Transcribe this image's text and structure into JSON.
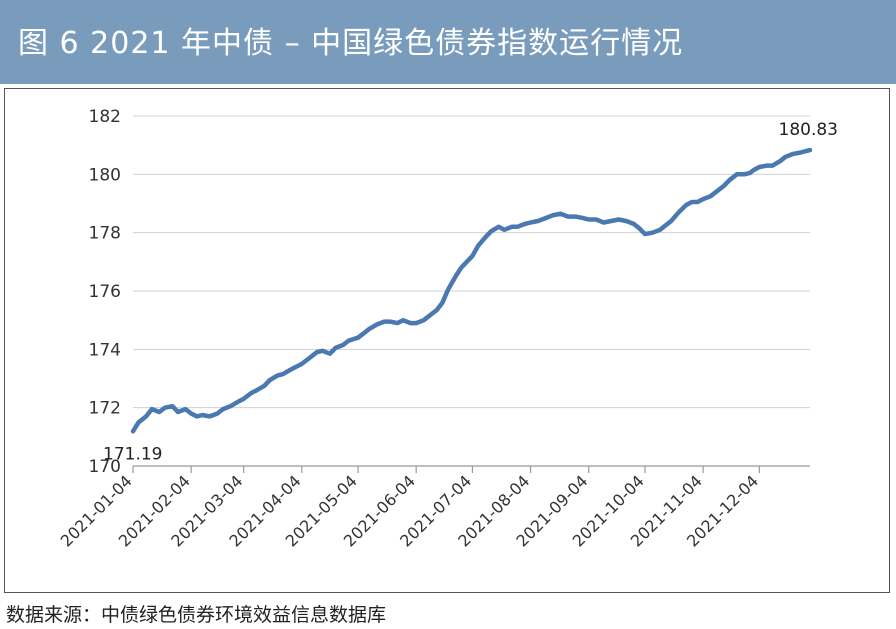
{
  "figure_title": "图 6   2021 年中债 – 中国绿色债券指数运行情况",
  "source_note": "数据来源：中债绿色债券环境效益信息数据库",
  "colors": {
    "header": "#7a9cbc",
    "line": "#4a78b0",
    "grid": "#d0d0d0"
  },
  "chart_data": {
    "type": "line",
    "title": "",
    "xlabel": "",
    "ylabel": "",
    "ylim": [
      170,
      182
    ],
    "yticks": [
      "170",
      "172",
      "174",
      "176",
      "178",
      "180",
      "182"
    ],
    "xticks": [
      "2021-01-04",
      "2021-02-04",
      "2021-03-04",
      "2021-04-04",
      "2021-05-04",
      "2021-06-04",
      "2021-07-04",
      "2021-08-04",
      "2021-09-04",
      "2021-10-04",
      "2021-11-04",
      "2021-12-04"
    ],
    "grid": "horizontal",
    "legend": "none",
    "annotations": [
      {
        "date": "2021-01-04",
        "value": 171.19,
        "text": "171.19"
      },
      {
        "date": "2021-12-31",
        "value": 180.83,
        "text": "180.83"
      }
    ],
    "series": [
      {
        "x": [
          "2021-01-04",
          "2021-01-07",
          "2021-01-11",
          "2021-01-14",
          "2021-01-18",
          "2021-01-21",
          "2021-01-25",
          "2021-01-28",
          "2021-02-01",
          "2021-02-04",
          "2021-02-07",
          "2021-02-10",
          "2021-02-14",
          "2021-02-18",
          "2021-02-21",
          "2021-02-25",
          "2021-03-01",
          "2021-03-04",
          "2021-03-08",
          "2021-03-11",
          "2021-03-15",
          "2021-03-18",
          "2021-03-22",
          "2021-03-25",
          "2021-03-29",
          "2021-04-01",
          "2021-04-04",
          "2021-04-08",
          "2021-04-12",
          "2021-04-15",
          "2021-04-19",
          "2021-04-22",
          "2021-04-26",
          "2021-04-29",
          "2021-05-04",
          "2021-05-07",
          "2021-05-10",
          "2021-05-14",
          "2021-05-18",
          "2021-05-21",
          "2021-05-25",
          "2021-05-28",
          "2021-06-01",
          "2021-06-04",
          "2021-06-08",
          "2021-06-11",
          "2021-06-15",
          "2021-06-18",
          "2021-06-21",
          "2021-06-25",
          "2021-06-28",
          "2021-07-01",
          "2021-07-04",
          "2021-07-07",
          "2021-07-11",
          "2021-07-14",
          "2021-07-18",
          "2021-07-21",
          "2021-07-25",
          "2021-07-28",
          "2021-08-01",
          "2021-08-04",
          "2021-08-08",
          "2021-08-12",
          "2021-08-16",
          "2021-08-20",
          "2021-08-24",
          "2021-08-28",
          "2021-09-01",
          "2021-09-04",
          "2021-09-08",
          "2021-09-12",
          "2021-09-16",
          "2021-09-20",
          "2021-09-24",
          "2021-09-28",
          "2021-10-01",
          "2021-10-04",
          "2021-10-08",
          "2021-10-12",
          "2021-10-15",
          "2021-10-18",
          "2021-10-22",
          "2021-10-26",
          "2021-10-29",
          "2021-11-01",
          "2021-11-04",
          "2021-11-08",
          "2021-11-11",
          "2021-11-15",
          "2021-11-18",
          "2021-11-22",
          "2021-11-26",
          "2021-11-29",
          "2021-12-01",
          "2021-12-04",
          "2021-12-08",
          "2021-12-11",
          "2021-12-15",
          "2021-12-18",
          "2021-12-22",
          "2021-12-26",
          "2021-12-29",
          "2021-12-31"
        ],
        "values": [
          171.19,
          171.5,
          171.7,
          171.95,
          171.85,
          172.0,
          172.05,
          171.85,
          171.95,
          171.8,
          171.7,
          171.75,
          171.7,
          171.8,
          171.95,
          172.05,
          172.2,
          172.3,
          172.5,
          172.6,
          172.75,
          172.95,
          173.1,
          173.15,
          173.3,
          173.4,
          173.5,
          173.7,
          173.9,
          173.95,
          173.85,
          174.05,
          174.15,
          174.3,
          174.4,
          174.55,
          174.7,
          174.85,
          174.95,
          174.95,
          174.9,
          175.0,
          174.9,
          174.9,
          175.0,
          175.15,
          175.35,
          175.6,
          176.05,
          176.5,
          176.8,
          177.0,
          177.2,
          177.55,
          177.85,
          178.05,
          178.2,
          178.1,
          178.2,
          178.2,
          178.3,
          178.35,
          178.4,
          178.5,
          178.6,
          178.65,
          178.55,
          178.55,
          178.5,
          178.45,
          178.45,
          178.35,
          178.4,
          178.45,
          178.4,
          178.3,
          178.15,
          177.95,
          178.0,
          178.1,
          178.25,
          178.4,
          178.7,
          178.95,
          179.05,
          179.05,
          179.15,
          179.25,
          179.4,
          179.6,
          179.8,
          180.0,
          180.0,
          180.05,
          180.15,
          180.25,
          180.3,
          180.3,
          180.45,
          180.6,
          180.7,
          180.75,
          180.8,
          180.83
        ]
      }
    ]
  }
}
